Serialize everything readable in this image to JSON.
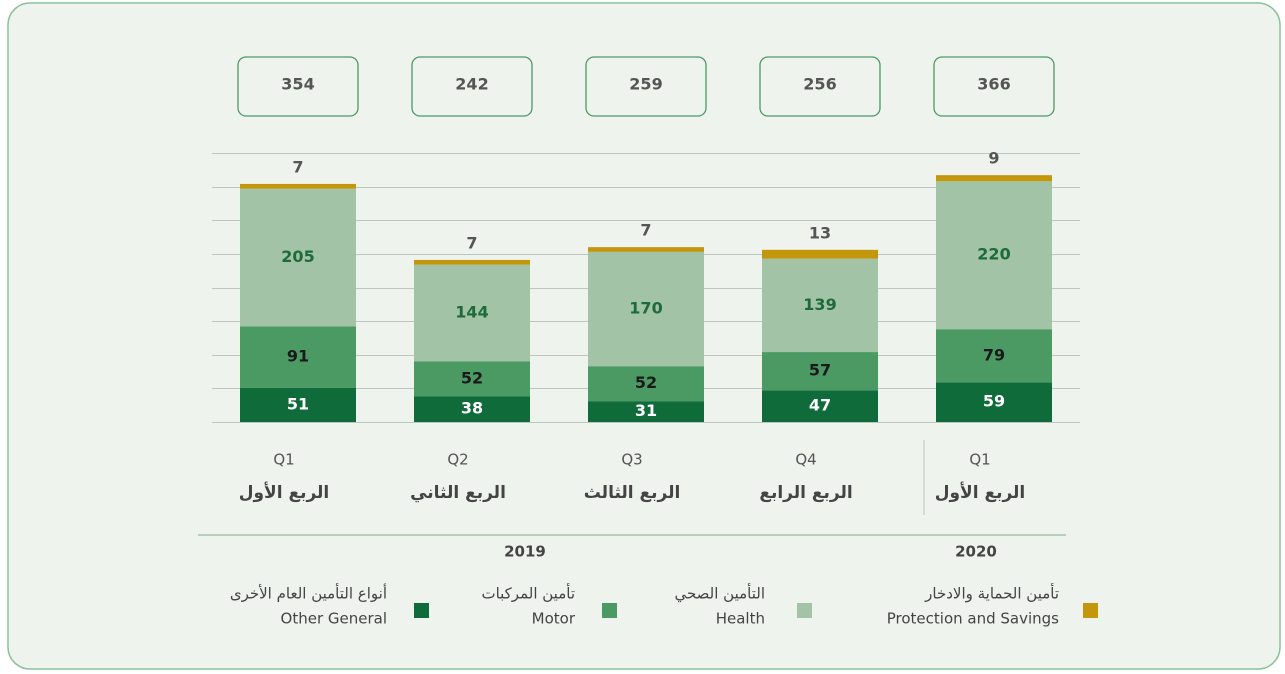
{
  "chart_data": {
    "type": "stacked_bar",
    "categories": [
      "Q1",
      "Q2",
      "Q3",
      "Q4",
      "Q1"
    ],
    "categories_ar": [
      "الربع الأول",
      "الربع الثاني",
      "الربع الثالث",
      "الربع الرابع",
      "الربع الأول"
    ],
    "years": [
      "2019",
      "2020"
    ],
    "totals": [
      354,
      242,
      259,
      256,
      366
    ],
    "series": [
      {
        "name": "Other General",
        "name_ar": "أنواع التأمين العام الأخرى",
        "color": "#0f6b3a",
        "values": [
          51,
          38,
          31,
          47,
          59
        ]
      },
      {
        "name": "Motor",
        "name_ar": "تأمين المركبات",
        "color": "#4b9a63",
        "values": [
          91,
          52,
          52,
          57,
          79
        ]
      },
      {
        "name": "Health",
        "name_ar": "التأمين الصحي",
        "color": "#a3c3a7",
        "values": [
          205,
          144,
          170,
          139,
          220
        ]
      },
      {
        "name": "Protection and Savings",
        "name_ar": "تأمين الحماية والادخار",
        "color": "#c4960c",
        "values": [
          7,
          7,
          7,
          13,
          9
        ]
      }
    ],
    "ylim": [
      0,
      400
    ],
    "yticks": [
      0,
      50,
      100,
      150,
      200,
      250,
      300,
      350,
      400
    ],
    "grid": true
  }
}
